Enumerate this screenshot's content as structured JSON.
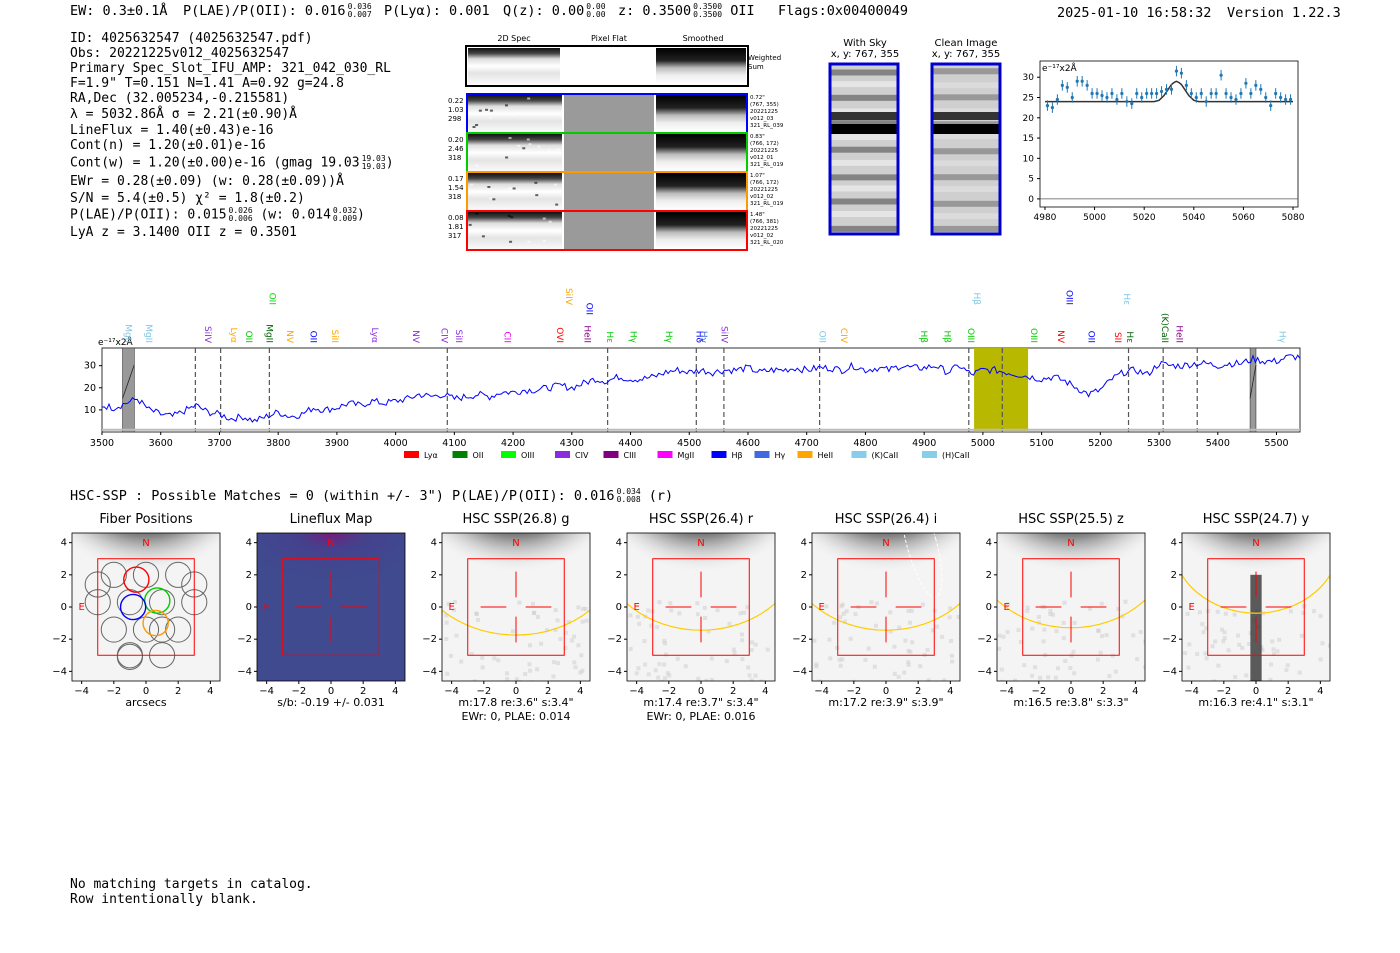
{
  "header": {
    "ew": "EW: 0.3±0.1Å",
    "plae_label": "P(LAE)/P(OII): 0.016",
    "plae_hi": "0.036",
    "plae_lo": "0.007",
    "plya": "P(Lyα): 0.001",
    "qz_label": "Q(z): 0.00",
    "qz_hi": "0.00",
    "qz_lo": "0.00",
    "z_label": "z: 0.3500",
    "z_hi": "0.3500",
    "z_lo": "0.3500",
    "z_line": "OII",
    "flags": "Flags:0x00400049",
    "datetime": "2025-01-10 16:58:32",
    "version": "Version 1.22.3"
  },
  "info": {
    "id": "ID: 4025632547 (4025632547.pdf)",
    "obs": "Obs: 20221225v012_4025632547",
    "primary": "Primary Spec_Slot_IFU_AMP: 321_042_030_RL",
    "fwhm": "F=1.9\"  T=0.151  N=1.41  A=0.92  g=24.8",
    "radec": "RA,Dec (32.005234,-0.215581)",
    "lambda": "λ = 5032.86Å   σ = 2.21(±0.90)Å",
    "lineflux": "LineFlux = 1.40(±0.43)e-16",
    "contn": "Cont(n) = 1.20(±0.01)e-16",
    "contw": "Cont(w) = 1.20(±0.00)e-16 (gmag 19.03",
    "gmag_hi": "19.03",
    "gmag_lo": "19.03",
    "ewr": "EWr = 0.28(±0.09) (w: 0.28(±0.09))Å",
    "sn": "S/N = 5.4(±0.5)  χ² = 1.8(±0.2)",
    "plae": "P(LAE)/P(OII): 0.015",
    "plae_hi": "0.026",
    "plae_lo": "0.006",
    "plae_w": "(w: 0.014",
    "plae_w_hi": "0.032",
    "plae_w_lo": "0.009",
    "lya_z": "LyA z = 3.1400   OII z = 0.3501"
  },
  "cutouts": {
    "col_titles": [
      "2D Spec",
      "Pixel Flat",
      "Smoothed"
    ],
    "weighted_sum": "Weighted\nSum",
    "rows": [
      {
        "left": [
          "0.22",
          "1.03",
          "298"
        ],
        "right": [
          "0.72\"",
          "(767, 355)",
          "20221225",
          "v012_03",
          "321_RL_039"
        ],
        "color": "#0000ff"
      },
      {
        "left": [
          "0.20",
          "2.46",
          "318"
        ],
        "right": [
          "0.83\"",
          "(766, 172)",
          "20221225",
          "v012_01",
          "321_RL_019"
        ],
        "color": "#00cc00"
      },
      {
        "left": [
          "0.17",
          "1.54",
          "318"
        ],
        "right": [
          "1.07\"",
          "(766, 172)",
          "20221225",
          "v012_02",
          "321_RL_019"
        ],
        "color": "#ff9900"
      },
      {
        "left": [
          "0.08",
          "1.81",
          "317"
        ],
        "right": [
          "1.48\"",
          "(766, 381)",
          "20221225",
          "v012_02",
          "321_RL_020"
        ],
        "color": "#ff0000"
      }
    ],
    "with_sky_title": "With Sky",
    "with_sky_xy": "x, y: 767, 355",
    "clean_title": "Clean Image",
    "clean_xy": "x, y: 767, 355"
  },
  "zoom_chart": {
    "type": "scatter",
    "unit": "e⁻¹⁷x2Å",
    "xlim": [
      4978,
      5082
    ],
    "ylim": [
      -2,
      34
    ],
    "xticks": [
      4980,
      5000,
      5020,
      5040,
      5060,
      5080
    ],
    "yticks": [
      0,
      5,
      10,
      15,
      20,
      25,
      30
    ],
    "points_x": [
      4981,
      4983,
      4985,
      4987,
      4989,
      4991,
      4993,
      4995,
      4997,
      4999,
      5001,
      5003,
      5005,
      5007,
      5009,
      5011,
      5013,
      5015,
      5017,
      5019,
      5021,
      5023,
      5025,
      5027,
      5029,
      5031,
      5033,
      5035,
      5037,
      5039,
      5041,
      5043,
      5045,
      5047,
      5049,
      5051,
      5053,
      5055,
      5057,
      5059,
      5061,
      5063,
      5065,
      5067,
      5069,
      5071,
      5073,
      5075,
      5077,
      5079
    ],
    "points_y": [
      23,
      22.5,
      24.5,
      28,
      27.5,
      25,
      29,
      29,
      28,
      26,
      26,
      25.5,
      25,
      26,
      24.5,
      26,
      24,
      23.5,
      26,
      25,
      26,
      26,
      26,
      26.5,
      27,
      27,
      31.5,
      31,
      28,
      26,
      25,
      26,
      24,
      26,
      26,
      30.5,
      26,
      25,
      24.5,
      26,
      28.5,
      26,
      28,
      27,
      25,
      23,
      26,
      25,
      24.5,
      24.5
    ],
    "err": 1.3,
    "model_x": [
      4980,
      5024,
      5026,
      5028,
      5030,
      5031,
      5032,
      5033,
      5034,
      5035,
      5036,
      5038,
      5040,
      5042,
      5080
    ],
    "model_y": [
      24,
      24,
      24.3,
      25.5,
      27.3,
      28.2,
      28.7,
      29,
      28.7,
      28.2,
      27.3,
      25.5,
      24.3,
      24,
      24
    ]
  },
  "spectrum_chart": {
    "type": "line",
    "unit": "e⁻¹⁷x2Å",
    "xlim": [
      3500,
      5540
    ],
    "ylim": [
      0,
      38
    ],
    "xticks": [
      3500,
      3600,
      3700,
      3800,
      3900,
      4000,
      4100,
      4200,
      4300,
      4400,
      4500,
      4600,
      4700,
      4800,
      4900,
      5000,
      5100,
      5200,
      5300,
      5400,
      5500
    ],
    "yticks": [
      10,
      20,
      30
    ],
    "anchors_x": [
      3500,
      3520,
      3540,
      3560,
      3580,
      3600,
      3620,
      3660,
      3680,
      3700,
      3720,
      3740,
      3760,
      3780,
      3800,
      3820,
      3840,
      3860,
      3880,
      3900,
      3920,
      3940,
      3960,
      3980,
      4000,
      4020,
      4040,
      4060,
      4080,
      4100,
      4120,
      4140,
      4160,
      4180,
      4200,
      4220,
      4240,
      4260,
      4280,
      4300,
      4320,
      4340,
      4360,
      4380,
      4400,
      4420,
      4440,
      4460,
      4480,
      4500,
      4520,
      4540,
      4560,
      4580,
      4600,
      4620,
      4640,
      4660,
      4680,
      4700,
      4720,
      4740,
      4760,
      4780,
      4800,
      4820,
      4840,
      4860,
      4880,
      4900,
      4920,
      4940,
      4960,
      4980,
      5000,
      5020,
      5040,
      5060,
      5080,
      5100,
      5120,
      5140,
      5160,
      5180,
      5200,
      5220,
      5240,
      5260,
      5280,
      5300,
      5320,
      5340,
      5360,
      5380,
      5400,
      5420,
      5440,
      5460,
      5480,
      5500,
      5520,
      5540
    ],
    "anchors_y": [
      12,
      11,
      13,
      15,
      10,
      8,
      7,
      12,
      9,
      8,
      6,
      7,
      5,
      7,
      9,
      7,
      8,
      11,
      10,
      11,
      13,
      12,
      14,
      13,
      14,
      15,
      17,
      16,
      17,
      15,
      16,
      17,
      16,
      18,
      18,
      19,
      19,
      20,
      21,
      20,
      22,
      24,
      23,
      25,
      24,
      24,
      25,
      27,
      28,
      27,
      28,
      27,
      28,
      28,
      29,
      27,
      28,
      28,
      29,
      28,
      29,
      29,
      28,
      30,
      28,
      29,
      28,
      30,
      29,
      29,
      30,
      27,
      30,
      26,
      28,
      28,
      27,
      26,
      25,
      24,
      25,
      23,
      20,
      17,
      19,
      24,
      27,
      28,
      26,
      31,
      30,
      30,
      31,
      31,
      30,
      31,
      31,
      33,
      32,
      32,
      34,
      34
    ],
    "noise_amp": 1.6,
    "masked_bands": [
      [
        3535,
        3555
      ],
      [
        5455,
        5465
      ]
    ],
    "highlight_band": [
      4985,
      5077
    ],
    "dashed_lines": [
      3659,
      3702,
      3785,
      4088,
      4361,
      4512,
      4559,
      4722,
      4976,
      5033,
      5248,
      5307,
      5365
    ],
    "line_labels": [
      {
        "name": "MgII",
        "x": 3540,
        "color": "#7ec8e3",
        "level": 1
      },
      {
        "name": "MgII",
        "x": 3575,
        "color": "#7ec8e3",
        "level": 1
      },
      {
        "name": "SiIV",
        "x": 3675,
        "color": "#8a2be2",
        "level": 1
      },
      {
        "name": "Lyα",
        "x": 3720,
        "color": "#ffa500",
        "level": 1
      },
      {
        "name": "OII",
        "x": 3745,
        "color": "#00cc00",
        "level": 1
      },
      {
        "name": "MgII",
        "x": 3780,
        "color": "#006400",
        "level": 1
      },
      {
        "name": "OII",
        "x": 3785,
        "color": "#00dd00",
        "level": 3
      },
      {
        "name": "NV",
        "x": 3815,
        "color": "#ffa500",
        "level": 1
      },
      {
        "name": "OII",
        "x": 3855,
        "color": "#0000ff",
        "level": 1
      },
      {
        "name": "SiII",
        "x": 3892,
        "color": "#ffa500",
        "level": 1
      },
      {
        "name": "Lyα",
        "x": 3960,
        "color": "#8a2be2",
        "level": 1
      },
      {
        "name": "NV",
        "x": 4030,
        "color": "#8a2be2",
        "level": 1
      },
      {
        "name": "CIV",
        "x": 4078,
        "color": "#8a2be2",
        "level": 1
      },
      {
        "name": "SiII",
        "x": 4103,
        "color": "#8a2be2",
        "level": 1
      },
      {
        "name": "CII",
        "x": 4185,
        "color": "#ee00ee",
        "level": 1
      },
      {
        "name": "OVI",
        "x": 4275,
        "color": "#ff0000",
        "level": 1
      },
      {
        "name": "SiIV",
        "x": 4290,
        "color": "#ffa500",
        "level": 3
      },
      {
        "name": "HeII",
        "x": 4322,
        "color": "#8b008b",
        "level": 1
      },
      {
        "name": "OII",
        "x": 4325,
        "color": "#0000ff",
        "level": 2
      },
      {
        "name": "Hε",
        "x": 4360,
        "color": "#00cc00",
        "level": 1
      },
      {
        "name": "Hγ",
        "x": 4400,
        "color": "#00cc00",
        "level": 1
      },
      {
        "name": "Hγ",
        "x": 4460,
        "color": "#00cc00",
        "level": 1
      },
      {
        "name": "Hδ",
        "x": 4512,
        "color": "#0000ff",
        "level": 1
      },
      {
        "name": "Hγ",
        "x": 4520,
        "color": "#4169e1",
        "level": 1
      },
      {
        "name": "SiIV",
        "x": 4555,
        "color": "#8a2be2",
        "level": 1
      },
      {
        "name": "OII",
        "x": 4722,
        "color": "#7ec8e3",
        "level": 1
      },
      {
        "name": "CIV",
        "x": 4758,
        "color": "#ffa500",
        "level": 1
      },
      {
        "name": "Hβ",
        "x": 4895,
        "color": "#00cc00",
        "level": 1
      },
      {
        "name": "Hβ",
        "x": 4935,
        "color": "#00cc00",
        "level": 1
      },
      {
        "name": "OIII",
        "x": 4975,
        "color": "#00cc00",
        "level": 1
      },
      {
        "name": "Hβ",
        "x": 4985,
        "color": "#7ec8e3",
        "level": 3
      },
      {
        "name": "OIII",
        "x": 5082,
        "color": "#00cc00",
        "level": 1
      },
      {
        "name": "NV",
        "x": 5128,
        "color": "#ff0000",
        "level": 1
      },
      {
        "name": "OIII",
        "x": 5142,
        "color": "#0000ff",
        "level": 3
      },
      {
        "name": "OII",
        "x": 5180,
        "color": "#0000ff",
        "level": 1
      },
      {
        "name": "SII",
        "x": 5225,
        "color": "#ff0000",
        "level": 1
      },
      {
        "name": "Hε",
        "x": 5240,
        "color": "#7ec8e3",
        "level": 3
      },
      {
        "name": "Hε",
        "x": 5245,
        "color": "#006400",
        "level": 1
      },
      {
        "name": "(K)CaII",
        "x": 5305,
        "color": "#006400",
        "level": 1
      },
      {
        "name": "HeII",
        "x": 5330,
        "color": "#8b008b",
        "level": 1
      },
      {
        "name": "Hγ",
        "x": 5505,
        "color": "#7ec8e3",
        "level": 1
      }
    ],
    "legend": [
      {
        "name": "Lyα",
        "color": "#ff0000"
      },
      {
        "name": "OII",
        "color": "#008000"
      },
      {
        "name": "OIII",
        "color": "#00ff00"
      },
      {
        "name": "CIV",
        "color": "#8a2be2"
      },
      {
        "name": "CIII",
        "color": "#800080"
      },
      {
        "name": "MgII",
        "color": "#ff00ff"
      },
      {
        "name": "Hβ",
        "color": "#0000ff"
      },
      {
        "name": "Hγ",
        "color": "#4169e1"
      },
      {
        "name": "HeII",
        "color": "#ffa500"
      },
      {
        "name": "(K)CaII",
        "color": "#87ceeb"
      },
      {
        "name": "(H)CaII",
        "color": "#87ceeb"
      }
    ]
  },
  "hsc": {
    "line": "HSC-SSP : Possible Matches = 0 (within +/- 3\")  P(LAE)/P(OII): 0.016",
    "hi": "0.034",
    "lo": "0.008",
    "band": "(r)"
  },
  "image_panels": {
    "ticks": [
      -4,
      -2,
      0,
      2,
      4
    ],
    "north": "N",
    "east": "E",
    "panels": [
      {
        "title": "Fiber Positions",
        "footer1": "arcsecs",
        "footer2": "",
        "kind": "fiber"
      },
      {
        "title": "Lineflux Map",
        "footer1": "s/b: -0.19 +/- 0.031",
        "footer2": "",
        "kind": "lineflux"
      },
      {
        "title": "HSC SSP(26.8) g",
        "footer1": "m:17.8  re:3.6\"  s:3.4\"",
        "footer2": "EWr: 0, PLAE: 0.014",
        "kind": "hsc",
        "ellipse_r": 0.78
      },
      {
        "title": "HSC SSP(26.4) r",
        "footer1": "m:17.4  re:3.7\"  s:3.4\"",
        "footer2": "EWr: 0, PLAE: 0.016",
        "kind": "hsc",
        "ellipse_r": 0.74
      },
      {
        "title": "HSC SSP(26.4) i",
        "footer1": "m:17.2  re:3.9\"  s:3.9\"",
        "footer2": "",
        "kind": "hsc_i",
        "ellipse_r": 0.74
      },
      {
        "title": "HSC SSP(25.5) z",
        "footer1": "m:16.5  re:3.8\"  s:3.3\"",
        "footer2": "",
        "kind": "hsc",
        "ellipse_r": 0.72
      },
      {
        "title": "HSC SSP(24.7) y",
        "footer1": "m:16.3  re:4.1\"  s:3.1\"",
        "footer2": "",
        "kind": "hsc_y",
        "ellipse_r": 0.6
      }
    ]
  },
  "catalog": {
    "line1": "No matching targets in catalog.",
    "line2": "Row intentionally blank."
  },
  "colors": {
    "spectrum": "#0000ff",
    "zoom": "#1f77b4",
    "model": "#333333",
    "highlight": "#b8b800",
    "box": "#ff0000",
    "ellipse": "#ffcc00",
    "lineflux_bg": "#3f4a8f"
  }
}
